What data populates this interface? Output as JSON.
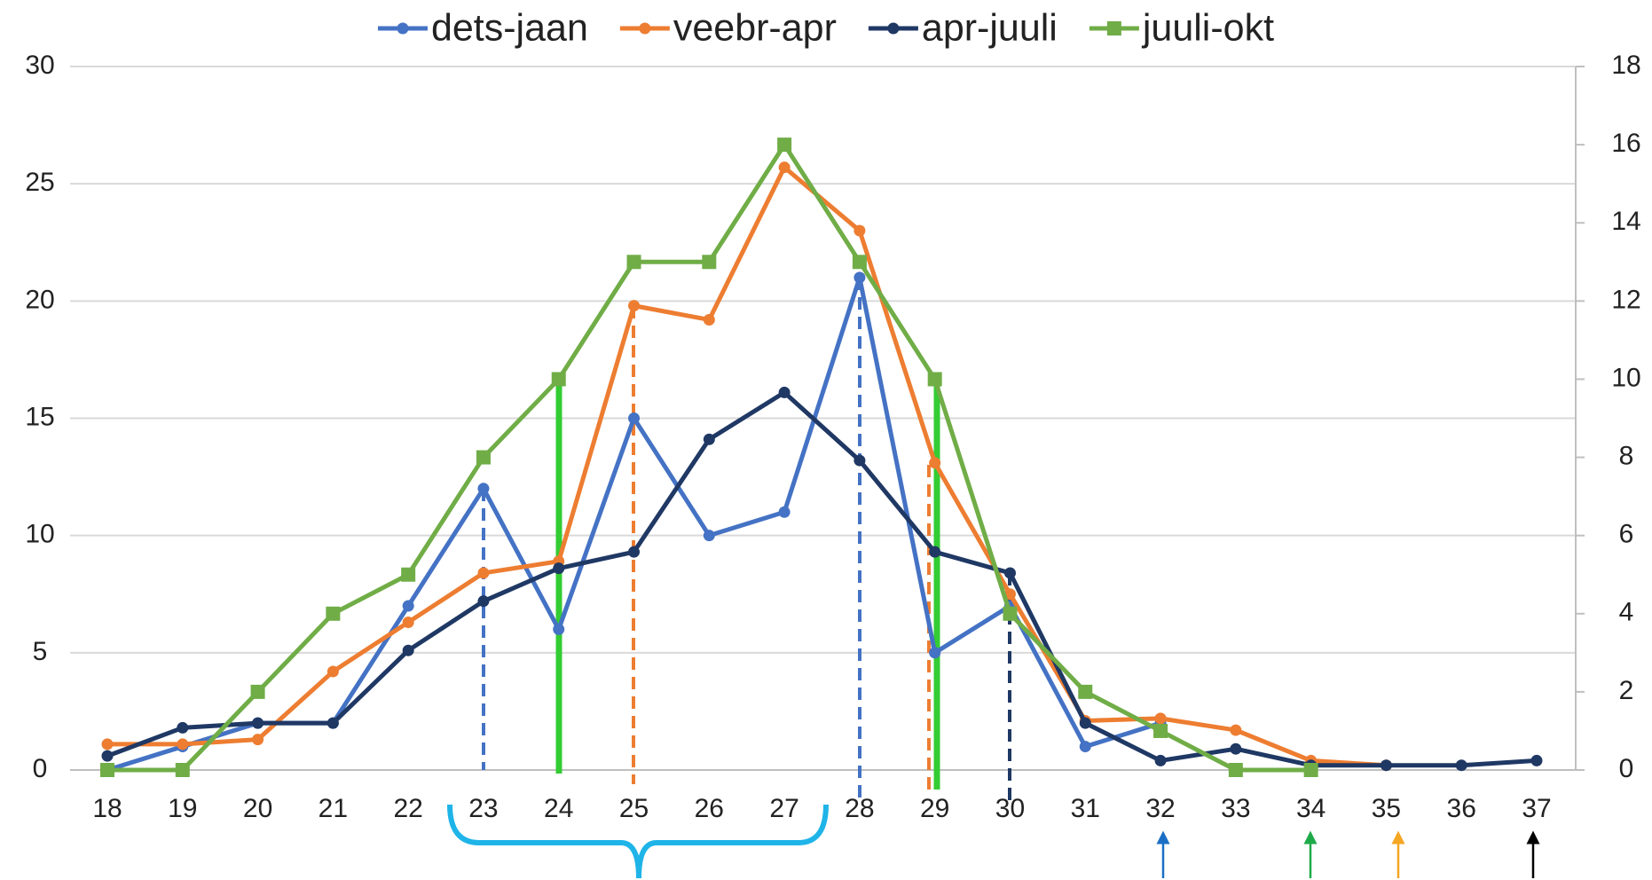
{
  "chart_data": {
    "type": "line",
    "categories": [
      18,
      19,
      20,
      21,
      22,
      23,
      24,
      25,
      26,
      27,
      28,
      29,
      30,
      31,
      32,
      33,
      34,
      35,
      36,
      37
    ],
    "series": [
      {
        "name": "dets-jaan",
        "color": "#4472c4",
        "marker": "circle",
        "values": [
          0,
          1,
          2,
          2,
          7,
          12,
          6,
          15,
          10,
          11,
          21,
          5,
          7,
          1,
          2,
          null,
          null,
          null,
          null,
          null
        ]
      },
      {
        "name": "veebr-apr",
        "color": "#ed7d31",
        "marker": "circle",
        "values": [
          1.1,
          1.1,
          1.3,
          4.2,
          6.3,
          8.4,
          8.9,
          19.8,
          19.2,
          25.7,
          23,
          13.1,
          7.5,
          2.1,
          2.2,
          1.7,
          0.4,
          0.2,
          null,
          null
        ]
      },
      {
        "name": "apr-juuli",
        "color": "#1f3864",
        "marker": "circle",
        "values": [
          0.6,
          1.8,
          2,
          2,
          5.1,
          7.2,
          8.6,
          9.3,
          14.1,
          16.1,
          13.2,
          9.3,
          8.4,
          2,
          0.4,
          0.9,
          0.2,
          0.2,
          0.2,
          0.4
        ]
      },
      {
        "name": "juuli-okt",
        "color": "#70ad47",
        "marker": "square",
        "axis": "y2",
        "values": [
          0,
          0,
          2,
          4,
          5,
          8,
          10,
          13,
          13,
          16,
          13,
          10,
          4,
          2,
          1,
          0,
          0,
          null,
          null,
          null
        ]
      }
    ],
    "ylim": [
      0,
      30
    ],
    "yticks": [
      0,
      5,
      10,
      15,
      20,
      25,
      30
    ],
    "y2lim": [
      0,
      18
    ],
    "y2ticks": [
      0,
      2,
      4,
      6,
      8,
      10,
      12,
      14,
      16,
      18
    ],
    "grid": true,
    "legend": "top"
  }
}
